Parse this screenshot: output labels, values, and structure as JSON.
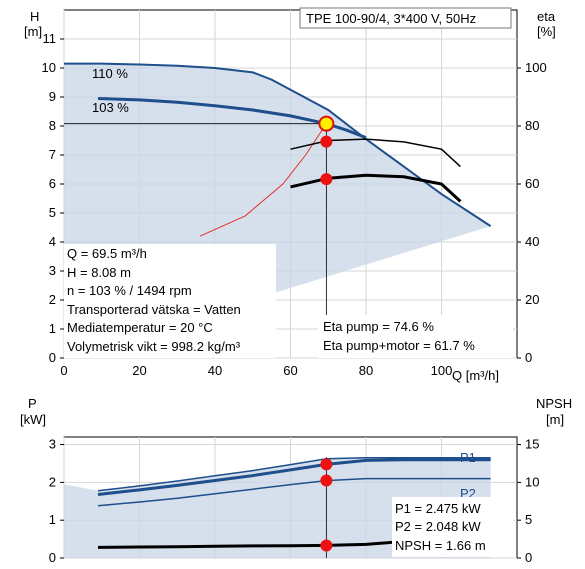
{
  "chart_data": [
    {
      "type": "line",
      "title": "TPE 100-90/4, 3*400 V, 50Hz",
      "xlabel": "Q [m³/h]",
      "ylabel_left": "H\n[m]",
      "ylabel_right": "eta\n[%]",
      "x_ticks": [
        "0",
        "20",
        "40",
        "60",
        "80",
        "100"
      ],
      "xlim": [
        0,
        120
      ],
      "ylim_left": [
        0,
        12
      ],
      "ylim_right": [
        0,
        120
      ],
      "y_ticks_left": [
        "0",
        "1",
        "2",
        "3",
        "4",
        "5",
        "6",
        "7",
        "8",
        "9",
        "10",
        "11"
      ],
      "y_ticks_right": [
        "0",
        "20",
        "40",
        "60",
        "80",
        "100"
      ],
      "grid": true,
      "series": [
        {
          "name": "110 %",
          "axis": "left",
          "x": [
            0,
            10,
            20,
            30,
            40,
            50,
            55,
            60,
            70,
            80,
            90,
            100,
            113
          ],
          "y": [
            10.15,
            10.15,
            10.12,
            10.08,
            10.0,
            9.85,
            9.6,
            9.25,
            8.55,
            7.55,
            6.6,
            5.65,
            4.55
          ]
        },
        {
          "name": "103 %",
          "axis": "left",
          "x": [
            9,
            20,
            30,
            40,
            50,
            60,
            69.5,
            75,
            80
          ],
          "y": [
            8.95,
            8.9,
            8.82,
            8.7,
            8.55,
            8.35,
            8.08,
            7.85,
            7.6
          ]
        },
        {
          "name": "Eta pump",
          "axis": "right",
          "x": [
            60,
            70,
            80,
            90,
            100,
            105
          ],
          "y": [
            72,
            75,
            75.5,
            74.5,
            72,
            66
          ]
        },
        {
          "name": "Eta pump+motor",
          "axis": "right",
          "x": [
            60,
            70,
            80,
            90,
            100,
            105
          ],
          "y": [
            59,
            62,
            63,
            62.5,
            60,
            54
          ]
        }
      ],
      "system_curve": {
        "x": [
          36,
          48,
          58,
          64,
          69.5
        ],
        "y": [
          4.2,
          4.9,
          6.0,
          7.0,
          8.08
        ]
      },
      "operating_point": {
        "Q": 69.5,
        "H": 8.08,
        "eta_pump": 74.6,
        "eta_pump_motor": 61.7
      },
      "labels": {
        "q": "Q = 69.5 m³/h",
        "h": "H = 8.08 m",
        "n": "n = 103 % / 1494 rpm",
        "liquid": "Transporterad vätska = Vatten",
        "temp": "Mediatemperatur = 20 °C",
        "density": "Volymetrisk vikt = 998.2 kg/m³",
        "eta_pump": "Eta pump = 74.6 %",
        "eta_motor": "Eta pump+motor = 61.7 %"
      }
    },
    {
      "type": "line",
      "ylabel_left": "P\n[kW]",
      "ylabel_right": "NPSH\n[m]",
      "xlim": [
        0,
        120
      ],
      "ylim_left": [
        0,
        3.2
      ],
      "ylim_right": [
        0,
        16
      ],
      "y_ticks_left": [
        "0",
        "1",
        "2",
        "3"
      ],
      "y_ticks_right": [
        "0",
        "5",
        "10",
        "15"
      ],
      "grid": true,
      "series": [
        {
          "name": "P1",
          "axis": "left",
          "x": [
            9,
            20,
            30,
            40,
            50,
            60,
            69.5,
            80,
            90,
            100,
            113
          ],
          "y": [
            1.68,
            1.8,
            1.92,
            2.05,
            2.18,
            2.33,
            2.475,
            2.58,
            2.6,
            2.6,
            2.6
          ]
        },
        {
          "name": "P2",
          "axis": "left",
          "x": [
            9,
            20,
            30,
            40,
            50,
            60,
            69.5,
            80,
            90,
            100,
            113
          ],
          "y": [
            1.38,
            1.48,
            1.58,
            1.7,
            1.82,
            1.94,
            2.048,
            2.1,
            2.1,
            2.1,
            2.1
          ]
        },
        {
          "name": "NPSH",
          "axis": "right",
          "x": [
            9,
            20,
            30,
            40,
            50,
            60,
            69.5,
            80,
            90
          ],
          "y": [
            1.4,
            1.45,
            1.5,
            1.55,
            1.6,
            1.62,
            1.66,
            1.8,
            2.2
          ]
        }
      ],
      "labels": {
        "p1": "P1 = 2.475 kW",
        "p2": "P2 = 2.048 kW",
        "npsh": "NPSH = 1.66 m"
      }
    }
  ]
}
